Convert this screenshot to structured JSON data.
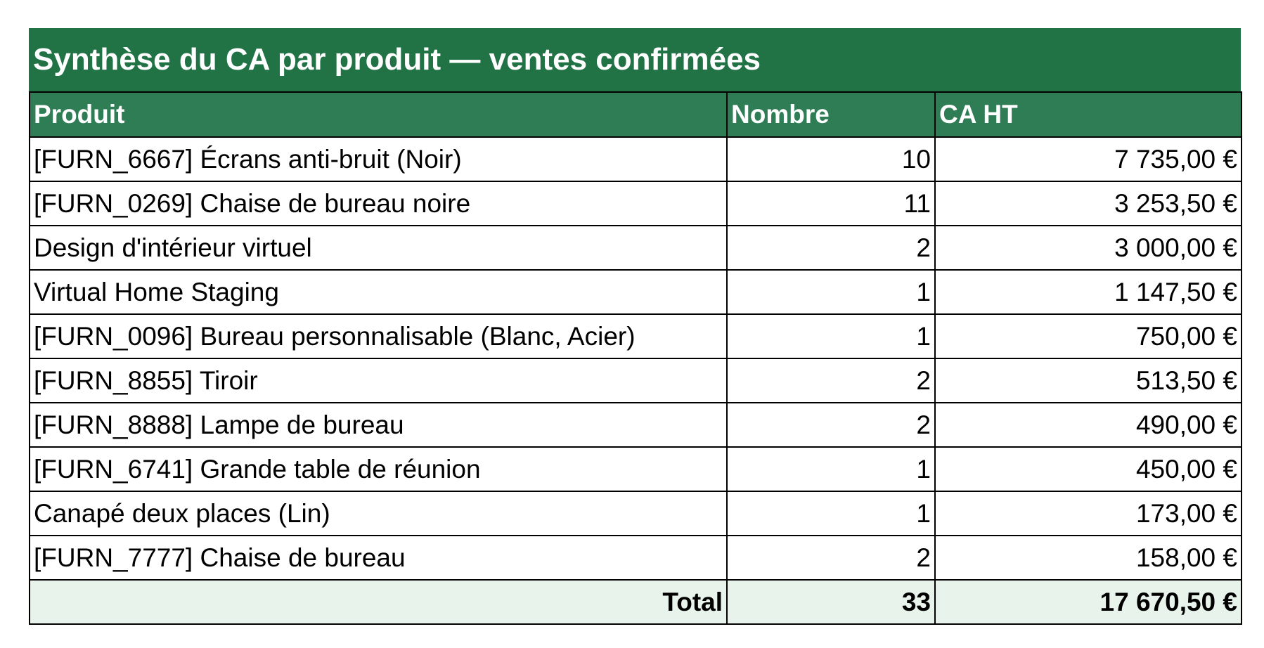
{
  "header": {
    "title": "Synthèse du CA par produit — ventes confirmées"
  },
  "table": {
    "columns": [
      "Produit",
      "Nombre",
      "CA HT"
    ],
    "rows": [
      [
        "[FURN_6667] Écrans anti-bruit (Noir)",
        "10",
        "7 735,00 €"
      ],
      [
        "[FURN_0269] Chaise de bureau noire",
        "11",
        "3 253,50 €"
      ],
      [
        "Design d'intérieur virtuel",
        "2",
        "3 000,00 €"
      ],
      [
        "Virtual Home Staging",
        "1",
        "1 147,50 €"
      ],
      [
        "[FURN_0096] Bureau personnalisable (Blanc, Acier)",
        "1",
        "750,00 €"
      ],
      [
        "[FURN_8855] Tiroir",
        "2",
        "513,50 €"
      ],
      [
        "[FURN_8888] Lampe de bureau",
        "2",
        "490,00 €"
      ],
      [
        "[FURN_6741] Grande table de réunion",
        "1",
        "450,00 €"
      ],
      [
        "Canapé deux places (Lin)",
        "1",
        "173,00 €"
      ],
      [
        "[FURN_7777] Chaise de bureau",
        "2",
        "158,00 €"
      ]
    ],
    "total": [
      "Total",
      "33",
      "17 670,50 €"
    ]
  }
}
